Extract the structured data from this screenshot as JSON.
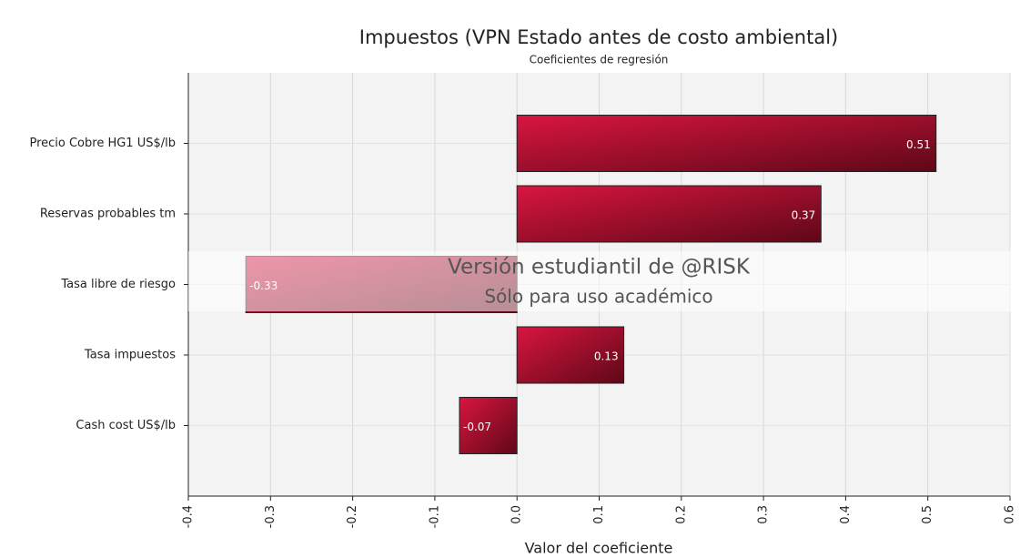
{
  "chart_data": {
    "type": "bar",
    "orientation": "horizontal",
    "title": "Impuestos (VPN Estado antes de costo ambiental)",
    "subtitle": "Coeficientes de regresión",
    "x_label": "Valor del coeficiente",
    "categories": [
      "Precio Cobre HG1 US$/lb",
      "Reservas probables tm",
      "Tasa libre de riesgo",
      "Tasa impuestos",
      "Cash cost US$/lb"
    ],
    "values": [
      0.51,
      0.37,
      -0.33,
      0.13,
      -0.07
    ],
    "color": "#d91540",
    "xlim": [
      -0.4,
      0.6
    ],
    "xticks": [
      -0.4,
      -0.3,
      -0.2,
      -0.1,
      {
        "value": 0,
        "label": "0.0"
      },
      0.1,
      0.2,
      0.3,
      0.4,
      0.5,
      0.6
    ],
    "grid": true,
    "watermark": [
      "Versión estudiantil de @RISK",
      "Sólo para uso académico"
    ]
  }
}
